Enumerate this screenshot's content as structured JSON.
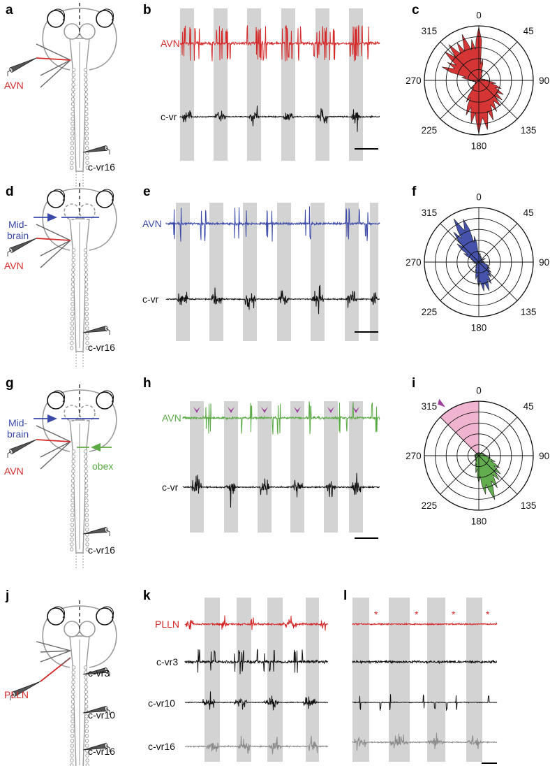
{
  "colors": {
    "red": "#d42a2a",
    "blue": "#3b4aa8",
    "green": "#5aaa45",
    "black": "#111111",
    "gray": "#8a8a8a",
    "stim_bar": "#d3d3d3",
    "pink": "#f0b3d0",
    "marker": "#9b3f9b"
  },
  "rows": [
    {
      "schematic": {
        "label": "a",
        "nerve_label": "AVN",
        "vr_label": "c-vr16"
      },
      "traces": {
        "label": "b",
        "top_label": "AVN",
        "bottom_label": "c-vr"
      },
      "polar": {
        "label": "c"
      }
    },
    {
      "schematic": {
        "label": "d",
        "nerve_label": "AVN",
        "vr_label": "c-vr16",
        "cut1_label_line1": "Mid-",
        "cut1_label_line2": "brain"
      },
      "traces": {
        "label": "e",
        "top_label": "AVN",
        "bottom_label": "c-vr"
      },
      "polar": {
        "label": "f"
      }
    },
    {
      "schematic": {
        "label": "g",
        "nerve_label": "AVN",
        "vr_label": "c-vr16",
        "cut1_label_line1": "Mid-",
        "cut1_label_line2": "brain",
        "cut2_label": "obex"
      },
      "traces": {
        "label": "h",
        "top_label": "AVN",
        "bottom_label": "c-vr"
      },
      "polar": {
        "label": "i"
      }
    },
    {
      "schematic": {
        "label": "j",
        "nerve_label": "PLLN",
        "vr_labels": [
          "c-vr3",
          "c-vr10",
          "c-vr16"
        ]
      },
      "traces_k": {
        "label": "k",
        "labels": [
          "PLLN",
          "c-vr3",
          "c-vr10",
          "c-vr16"
        ]
      },
      "traces_l": {
        "label": "l",
        "marker": "*"
      }
    }
  ],
  "chart_data": [
    {
      "type": "polar-area",
      "panel": "c",
      "angle_ticks": [
        "0",
        "45",
        "90",
        "135",
        "180",
        "225",
        "270",
        "315"
      ],
      "rings": 5,
      "bins_deg": [
        0,
        10,
        20,
        30,
        40,
        50,
        60,
        70,
        80,
        90,
        100,
        110,
        120,
        130,
        140,
        150,
        160,
        170,
        180,
        190,
        200,
        210,
        220,
        230,
        240,
        250,
        260,
        270,
        280,
        290,
        300,
        310,
        320,
        330,
        340,
        350
      ],
      "values": [
        4.9,
        2.0,
        1.0,
        0.6,
        0.4,
        0.3,
        0.3,
        0.4,
        0.6,
        1.0,
        1.6,
        2.2,
        2.6,
        2.8,
        3.1,
        3.3,
        3.9,
        4.6,
        4.9,
        4.0,
        3.4,
        2.3,
        1.0,
        0.5,
        0.4,
        0.4,
        0.6,
        1.0,
        1.6,
        3.6,
        3.3,
        4.1,
        4.3,
        4.0,
        4.5,
        3.8
      ],
      "color": "#d42a2a"
    },
    {
      "type": "polar-area",
      "panel": "f",
      "angle_ticks": [
        "0",
        "45",
        "90",
        "135",
        "180",
        "225",
        "270",
        "315"
      ],
      "rings": 5,
      "bins_deg": [
        0,
        10,
        20,
        30,
        40,
        50,
        60,
        70,
        80,
        90,
        100,
        110,
        120,
        130,
        140,
        150,
        160,
        170,
        180,
        190,
        200,
        210,
        220,
        230,
        240,
        250,
        260,
        270,
        280,
        290,
        300,
        310,
        320,
        330,
        340,
        350
      ],
      "values": [
        1.0,
        0.8,
        0.6,
        0.5,
        0.4,
        0.4,
        0.7,
        0.3,
        0.5,
        0.3,
        0.6,
        1.0,
        1.2,
        1.5,
        1.8,
        2.3,
        2.8,
        2.7,
        2.3,
        1.6,
        1.0,
        0.6,
        0.4,
        0.3,
        0.3,
        0.4,
        0.5,
        0.4,
        0.6,
        0.8,
        1.6,
        2.6,
        3.6,
        4.6,
        4.2,
        2.4
      ],
      "color": "#3b4aa8"
    },
    {
      "type": "polar-area",
      "panel": "i",
      "angle_ticks": [
        "0",
        "45",
        "90",
        "135",
        "180",
        "225",
        "270",
        "315"
      ],
      "rings": 5,
      "bins_deg": [
        0,
        10,
        20,
        30,
        40,
        50,
        60,
        70,
        80,
        90,
        100,
        110,
        120,
        130,
        140,
        150,
        160,
        170,
        180,
        190,
        200,
        210,
        220,
        230,
        240,
        250,
        260,
        270,
        280,
        290,
        300,
        310,
        320,
        330,
        340,
        350
      ],
      "values": [
        0.3,
        0.3,
        0.3,
        0.3,
        0.4,
        0.4,
        0.5,
        0.5,
        0.6,
        0.8,
        1.1,
        1.6,
        2.2,
        2.6,
        2.9,
        3.4,
        4.3,
        3.6,
        2.5,
        1.6,
        1.0,
        0.6,
        0.5,
        0.4,
        0.4,
        0.4,
        0.4,
        0.4,
        0.4,
        0.4,
        0.3,
        0.3,
        0.3,
        0.3,
        0.3,
        0.3
      ],
      "color": "#5aaa45",
      "highlight_sector_deg": [
        315,
        360
      ]
    }
  ]
}
